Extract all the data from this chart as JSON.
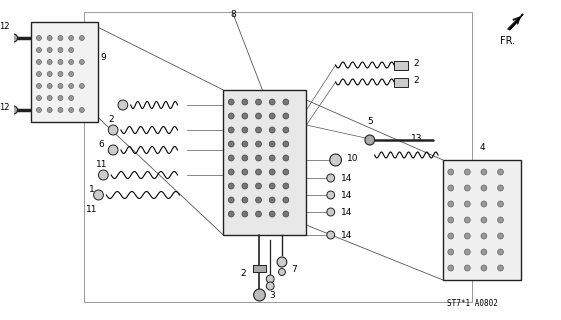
{
  "bg_color": "white",
  "diagram_code": "ST7*1 A0802",
  "fr_label": "FR.",
  "line_color": "#222222",
  "light_gray": "#bbbbbb",
  "mid_gray": "#888888",
  "plate_fill": "#e0e0e0"
}
